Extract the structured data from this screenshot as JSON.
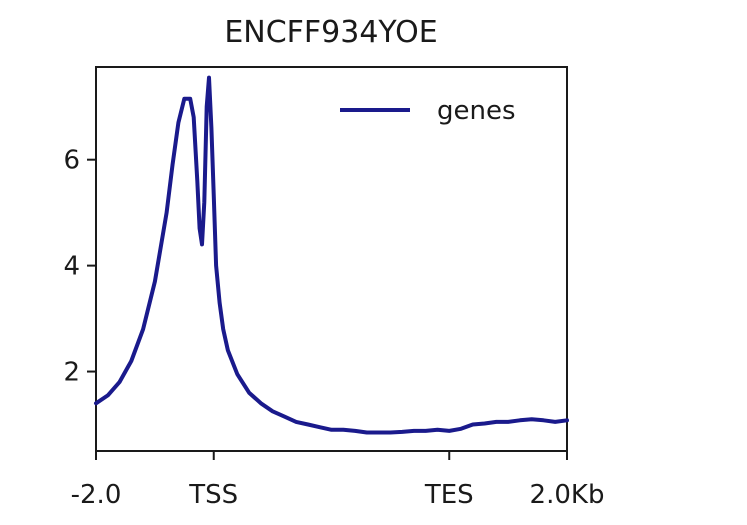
{
  "chart_data": {
    "type": "line",
    "title": "ENCFF934YOE",
    "xlabel": "",
    "ylabel": "",
    "x_ticks": [
      {
        "pos": 0,
        "label": "-2.0"
      },
      {
        "pos": 1,
        "label": "TSS"
      },
      {
        "pos": 3,
        "label": "TES"
      },
      {
        "pos": 4,
        "label": "2.0Kb"
      }
    ],
    "xlim": [
      0,
      4
    ],
    "y_ticks": [
      2,
      4,
      6
    ],
    "ylim": [
      0.5,
      7.75
    ],
    "grid": false,
    "legend_position": "top-right",
    "series": [
      {
        "name": "genes",
        "color": "#1a1a8c",
        "x": [
          0,
          0.1,
          0.2,
          0.3,
          0.4,
          0.5,
          0.6,
          0.65,
          0.7,
          0.75,
          0.8,
          0.83,
          0.86,
          0.88,
          0.9,
          0.92,
          0.94,
          0.96,
          0.98,
          1.0,
          1.02,
          1.05,
          1.08,
          1.12,
          1.2,
          1.3,
          1.4,
          1.5,
          1.6,
          1.7,
          1.8,
          1.9,
          2.0,
          2.1,
          2.2,
          2.3,
          2.4,
          2.5,
          2.6,
          2.7,
          2.8,
          2.9,
          3.0,
          3.1,
          3.2,
          3.3,
          3.4,
          3.5,
          3.6,
          3.7,
          3.8,
          3.9,
          4.0
        ],
        "y": [
          1.4,
          1.55,
          1.8,
          2.2,
          2.8,
          3.7,
          5.0,
          5.9,
          6.7,
          7.15,
          7.15,
          6.8,
          5.6,
          4.7,
          4.4,
          5.2,
          7.0,
          7.55,
          6.6,
          5.3,
          4.0,
          3.3,
          2.8,
          2.4,
          1.95,
          1.6,
          1.4,
          1.25,
          1.15,
          1.05,
          1.0,
          0.95,
          0.9,
          0.9,
          0.88,
          0.85,
          0.85,
          0.85,
          0.86,
          0.88,
          0.88,
          0.9,
          0.88,
          0.92,
          1.0,
          1.02,
          1.05,
          1.05,
          1.08,
          1.1,
          1.08,
          1.05,
          1.08
        ]
      }
    ]
  }
}
